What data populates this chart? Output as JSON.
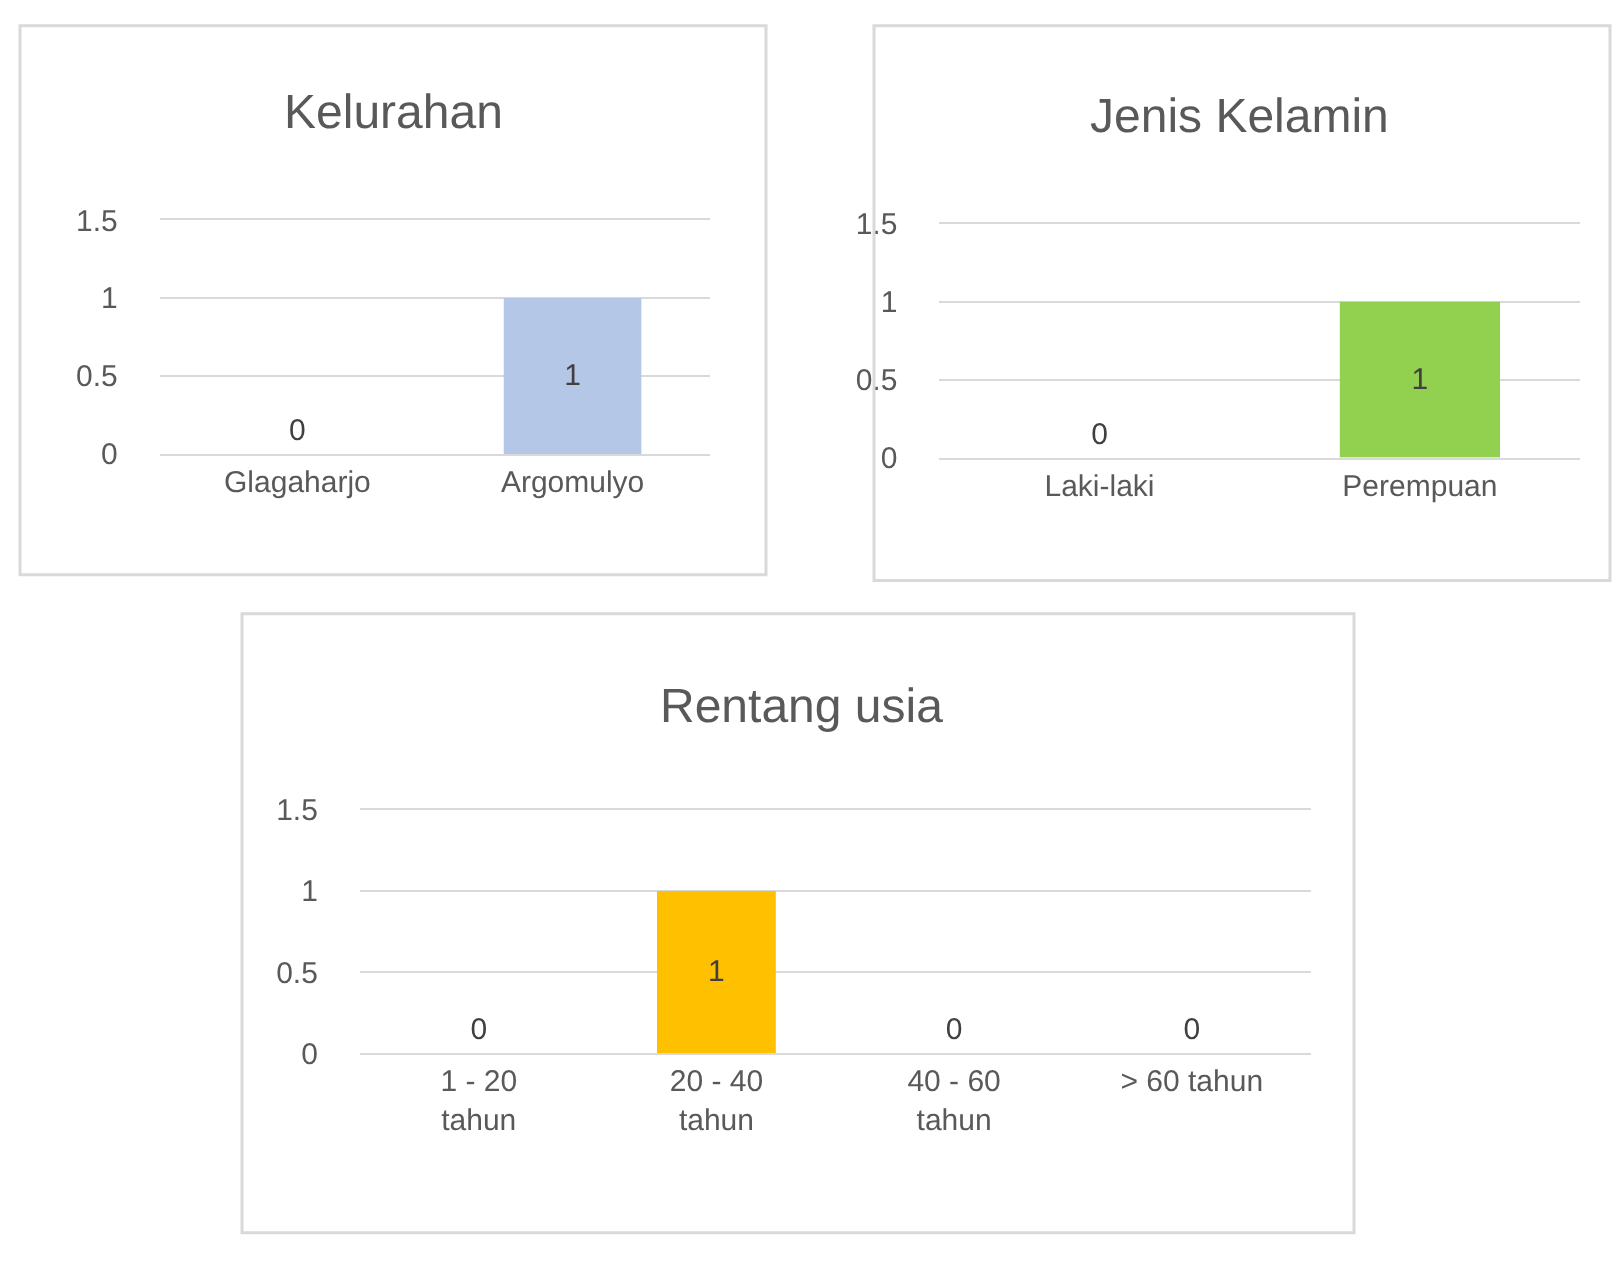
{
  "chart_data": [
    {
      "type": "bar",
      "title": "Kelurahan",
      "categories": [
        "Glagaharjo",
        "Argomulyo"
      ],
      "values": [
        0,
        1
      ],
      "color": "#b4c7e7",
      "ylim": [
        0,
        1.5
      ],
      "yticks": [
        0,
        0.5,
        1,
        1.5
      ],
      "grid": "y",
      "data_labels": true
    },
    {
      "type": "bar",
      "title": "Jenis Kelamin",
      "categories": [
        "Laki-laki",
        "Perempuan"
      ],
      "values": [
        0,
        1
      ],
      "color": "#92d050",
      "ylim": [
        0,
        1.5
      ],
      "yticks": [
        0,
        0.5,
        1,
        1.5
      ],
      "grid": "y",
      "data_labels": true
    },
    {
      "type": "bar",
      "title": "Rentang usia",
      "categories": [
        "1 - 20 tahun",
        "20 - 40 tahun",
        "40 - 60 tahun",
        "> 60 tahun"
      ],
      "values": [
        0,
        1,
        0,
        0
      ],
      "color": "#ffc000",
      "ylim": [
        0,
        1.5
      ],
      "yticks": [
        0,
        0.5,
        1,
        1.5
      ],
      "grid": "y",
      "data_labels": true
    }
  ]
}
